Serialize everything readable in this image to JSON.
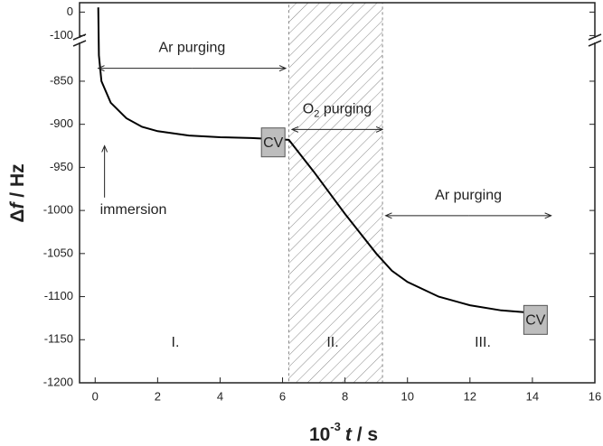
{
  "chart_data": {
    "type": "line",
    "xlabel": [
      "10",
      "-3",
      "t",
      " / s"
    ],
    "ylabel": [
      "Δ",
      "f",
      " / Hz"
    ],
    "xlim": [
      -0.5,
      16
    ],
    "ylim": [
      -1200,
      40
    ],
    "y_break": [
      -805,
      -110
    ],
    "xticks": [
      0,
      2,
      4,
      6,
      8,
      10,
      12,
      14,
      16
    ],
    "yticks": [
      0,
      -100,
      -850,
      -900,
      -950,
      -1000,
      -1050,
      -1100,
      -1150,
      -1200
    ],
    "color": "#000000",
    "x": [
      0.1,
      0.12,
      0.2,
      0.5,
      1,
      1.5,
      2,
      3,
      4,
      5,
      5.6,
      6.2,
      7,
      8,
      9,
      9.5,
      10,
      11,
      12,
      13,
      14.4
    ],
    "values": [
      20,
      -820,
      -850,
      -875,
      -893,
      -903,
      -908,
      -913,
      -915,
      -916,
      -917,
      -918,
      -955,
      -1004,
      -1050,
      -1070,
      -1083,
      -1100,
      -1110,
      -1116,
      -1120
    ],
    "shaded_region": [
      6.2,
      9.2
    ],
    "arrows": [
      {
        "text": [
          "Ar purging"
        ],
        "x": [
          0.1,
          6.1
        ],
        "y": -835
      },
      {
        "text": [
          "O",
          "2",
          " purging"
        ],
        "x": [
          6.3,
          9.2
        ],
        "y": -906
      },
      {
        "text": [
          "Ar purging"
        ],
        "x": [
          9.3,
          14.6
        ],
        "y": -1006
      }
    ],
    "immersion": {
      "text": "immersion",
      "x": 0.3,
      "y": [
        -985,
        -925
      ]
    },
    "cv_boxes": [
      {
        "text": "CV",
        "x": 5.7,
        "y": -921
      },
      {
        "text": "CV",
        "x": 14.1,
        "y": -1127
      }
    ],
    "regions": [
      "I.",
      "II.",
      "III."
    ]
  }
}
